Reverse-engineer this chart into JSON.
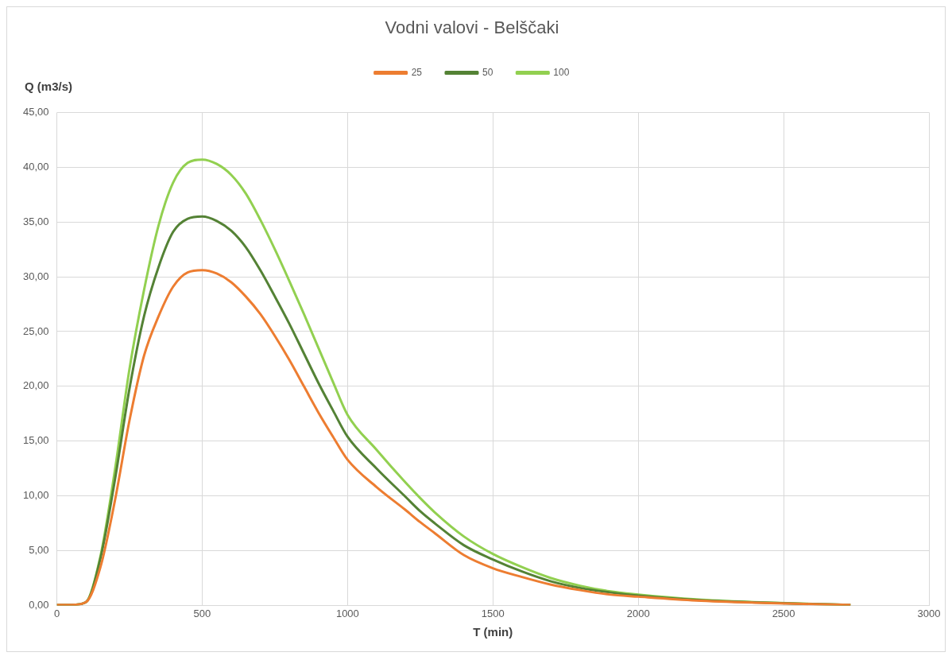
{
  "chart_data": {
    "type": "line",
    "title": "Vodni valovi - Belščaki",
    "xlabel": "T (min)",
    "ylabel": "Q (m3/s)",
    "x": [
      0,
      50,
      100,
      150,
      200,
      250,
      300,
      350,
      400,
      450,
      500,
      550,
      600,
      650,
      700,
      750,
      800,
      850,
      900,
      950,
      1000,
      1100,
      1200,
      1250,
      1300,
      1400,
      1500,
      1600,
      1700,
      1800,
      1900,
      2000,
      2200,
      2400,
      2600,
      2730
    ],
    "series": [
      {
        "name": "25",
        "color": "#ed7d31",
        "values": [
          0.05,
          0.05,
          0.3,
          3.5,
          9.6,
          16.9,
          22.8,
          26.4,
          29.1,
          30.4,
          30.6,
          30.3,
          29.5,
          28.2,
          26.6,
          24.6,
          22.4,
          20.0,
          17.6,
          15.4,
          13.3,
          10.8,
          8.7,
          7.6,
          6.6,
          4.6,
          3.4,
          2.6,
          1.9,
          1.4,
          1.0,
          0.8,
          0.45,
          0.25,
          0.12,
          0.05
        ]
      },
      {
        "name": "50",
        "color": "#548235",
        "values": [
          0.05,
          0.05,
          0.3,
          4.3,
          11.5,
          19.8,
          26.4,
          30.9,
          34.1,
          35.3,
          35.5,
          35.1,
          34.2,
          32.7,
          30.6,
          28.2,
          25.7,
          23.0,
          20.3,
          17.8,
          15.4,
          12.5,
          9.9,
          8.6,
          7.5,
          5.5,
          4.2,
          3.1,
          2.2,
          1.6,
          1.2,
          0.9,
          0.5,
          0.28,
          0.13,
          0.05
        ]
      },
      {
        "name": "100",
        "color": "#92d050",
        "values": [
          0.05,
          0.05,
          0.3,
          4.5,
          12.4,
          21.6,
          28.8,
          34.7,
          38.6,
          40.4,
          40.7,
          40.3,
          39.3,
          37.6,
          35.2,
          32.5,
          29.6,
          26.6,
          23.5,
          20.4,
          17.4,
          14.2,
          11.2,
          9.8,
          8.5,
          6.3,
          4.7,
          3.5,
          2.5,
          1.8,
          1.3,
          1.0,
          0.55,
          0.3,
          0.14,
          0.05
        ]
      }
    ],
    "xlim": [
      0,
      3000
    ],
    "xticks": [
      0,
      500,
      1000,
      1500,
      2000,
      2500,
      3000
    ],
    "ylim": [
      0,
      45
    ],
    "yticks": [
      {
        "value": 0,
        "label": "0,00"
      },
      {
        "value": 5,
        "label": "5,00"
      },
      {
        "value": 10,
        "label": "10,00"
      },
      {
        "value": 15,
        "label": "15,00"
      },
      {
        "value": 20,
        "label": "20,00"
      },
      {
        "value": 25,
        "label": "25,00"
      },
      {
        "value": 30,
        "label": "30,00"
      },
      {
        "value": 35,
        "label": "35,00"
      },
      {
        "value": 40,
        "label": "40,00"
      },
      {
        "value": 45,
        "label": "45,00"
      }
    ],
    "grid": true,
    "legend": "top",
    "marker": "none",
    "line_style": "solid"
  }
}
